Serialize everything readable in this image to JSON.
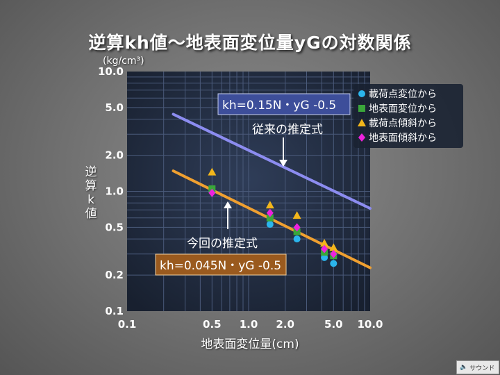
{
  "title": "逆算kh値～地表面変位量yGの対数関係",
  "y_unit": "(kg/cm³)",
  "y_label": "逆算k値",
  "x_label": "地表面変位量(cm)",
  "sound_button": {
    "label": "サウンド",
    "icon": "speaker-icon"
  },
  "chart_data": {
    "type": "scatter",
    "x_scale": "log",
    "y_scale": "log",
    "xlim": [
      0.1,
      10.0
    ],
    "ylim": [
      0.1,
      10.0
    ],
    "x_ticks": [
      "0.1",
      "0.5",
      "1.0",
      "2.0",
      "5.0",
      "10.0"
    ],
    "x_tick_values": [
      0.1,
      0.5,
      1.0,
      2.0,
      5.0,
      10.0
    ],
    "y_ticks": [
      "10.0",
      "5.0",
      "2.0",
      "1.0",
      "0.5",
      "0.2",
      "0.1"
    ],
    "y_tick_values": [
      10.0,
      5.0,
      2.0,
      1.0,
      0.5,
      0.2,
      0.1
    ],
    "grid": true,
    "legend_position": "top-right",
    "series": [
      {
        "name": "載荷点変位から",
        "marker": "circle",
        "color": "#2bb5ec",
        "points": [
          [
            0.5,
            1.0
          ],
          [
            1.5,
            0.53
          ],
          [
            2.5,
            0.4
          ],
          [
            4.2,
            0.28
          ],
          [
            5.0,
            0.25
          ]
        ]
      },
      {
        "name": "地表面変位から",
        "marker": "square",
        "color": "#3aa63a",
        "points": [
          [
            0.5,
            1.05
          ],
          [
            1.5,
            0.6
          ],
          [
            2.5,
            0.46
          ],
          [
            4.2,
            0.31
          ],
          [
            5.0,
            0.29
          ]
        ]
      },
      {
        "name": "載荷点傾斜から",
        "marker": "triangle",
        "color": "#f2b61b",
        "points": [
          [
            0.5,
            1.45
          ],
          [
            1.5,
            0.77
          ],
          [
            2.5,
            0.63
          ],
          [
            4.2,
            0.37
          ],
          [
            5.0,
            0.34
          ]
        ]
      },
      {
        "name": "地表面傾斜から",
        "marker": "diamond",
        "color": "#ee22dd",
        "points": [
          [
            0.5,
            0.97
          ],
          [
            1.5,
            0.66
          ],
          [
            2.5,
            0.5
          ],
          [
            4.2,
            0.33
          ],
          [
            5.0,
            0.3
          ]
        ]
      }
    ],
    "lines": [
      {
        "formula": "kh=0.15N・yG -0.5",
        "label": "従来の推定式",
        "color": "#8c8cf0",
        "box_color": "#3d4e9a",
        "x_range": [
          0.2,
          10.0
        ],
        "y_range": [
          4.4,
          0.72
        ]
      },
      {
        "formula": "kh=0.045N・yG -0.5",
        "label": "今回の推定式",
        "color": "#f0a030",
        "box_color": "#9a5a1e",
        "x_range": [
          0.2,
          10.0
        ],
        "y_range": [
          1.48,
          0.23
        ]
      }
    ]
  }
}
